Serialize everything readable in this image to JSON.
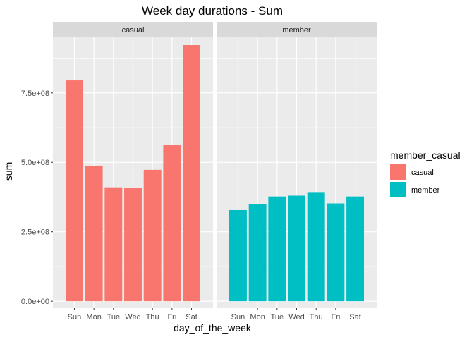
{
  "chart_data": {
    "type": "bar",
    "title": "Week day durations - Sum",
    "xlabel": "day_of_the_week",
    "ylabel": "sum",
    "ylim": [
      -25000000,
      950000000
    ],
    "yticks": [
      0,
      250000000,
      500000000,
      750000000
    ],
    "ytick_labels": [
      "0.0e+00",
      "2.5e+08",
      "5.0e+08",
      "7.5e+08"
    ],
    "categories": [
      "Sun",
      "Mon",
      "Tue",
      "Wed",
      "Thu",
      "Fri",
      "Sat"
    ],
    "grid": true,
    "legend": {
      "title": "member_casual",
      "position": "right",
      "entries": [
        {
          "label": "casual",
          "color": "#F8766D"
        },
        {
          "label": "member",
          "color": "#00BFC4"
        }
      ]
    },
    "panels": [
      {
        "strip": "casual",
        "color": "#F8766D",
        "values": [
          795000000,
          488000000,
          410000000,
          408000000,
          473000000,
          562000000,
          922000000
        ]
      },
      {
        "strip": "member",
        "color": "#00BFC4",
        "values": [
          328000000,
          350000000,
          377000000,
          380000000,
          393000000,
          352000000,
          377000000
        ]
      }
    ]
  }
}
